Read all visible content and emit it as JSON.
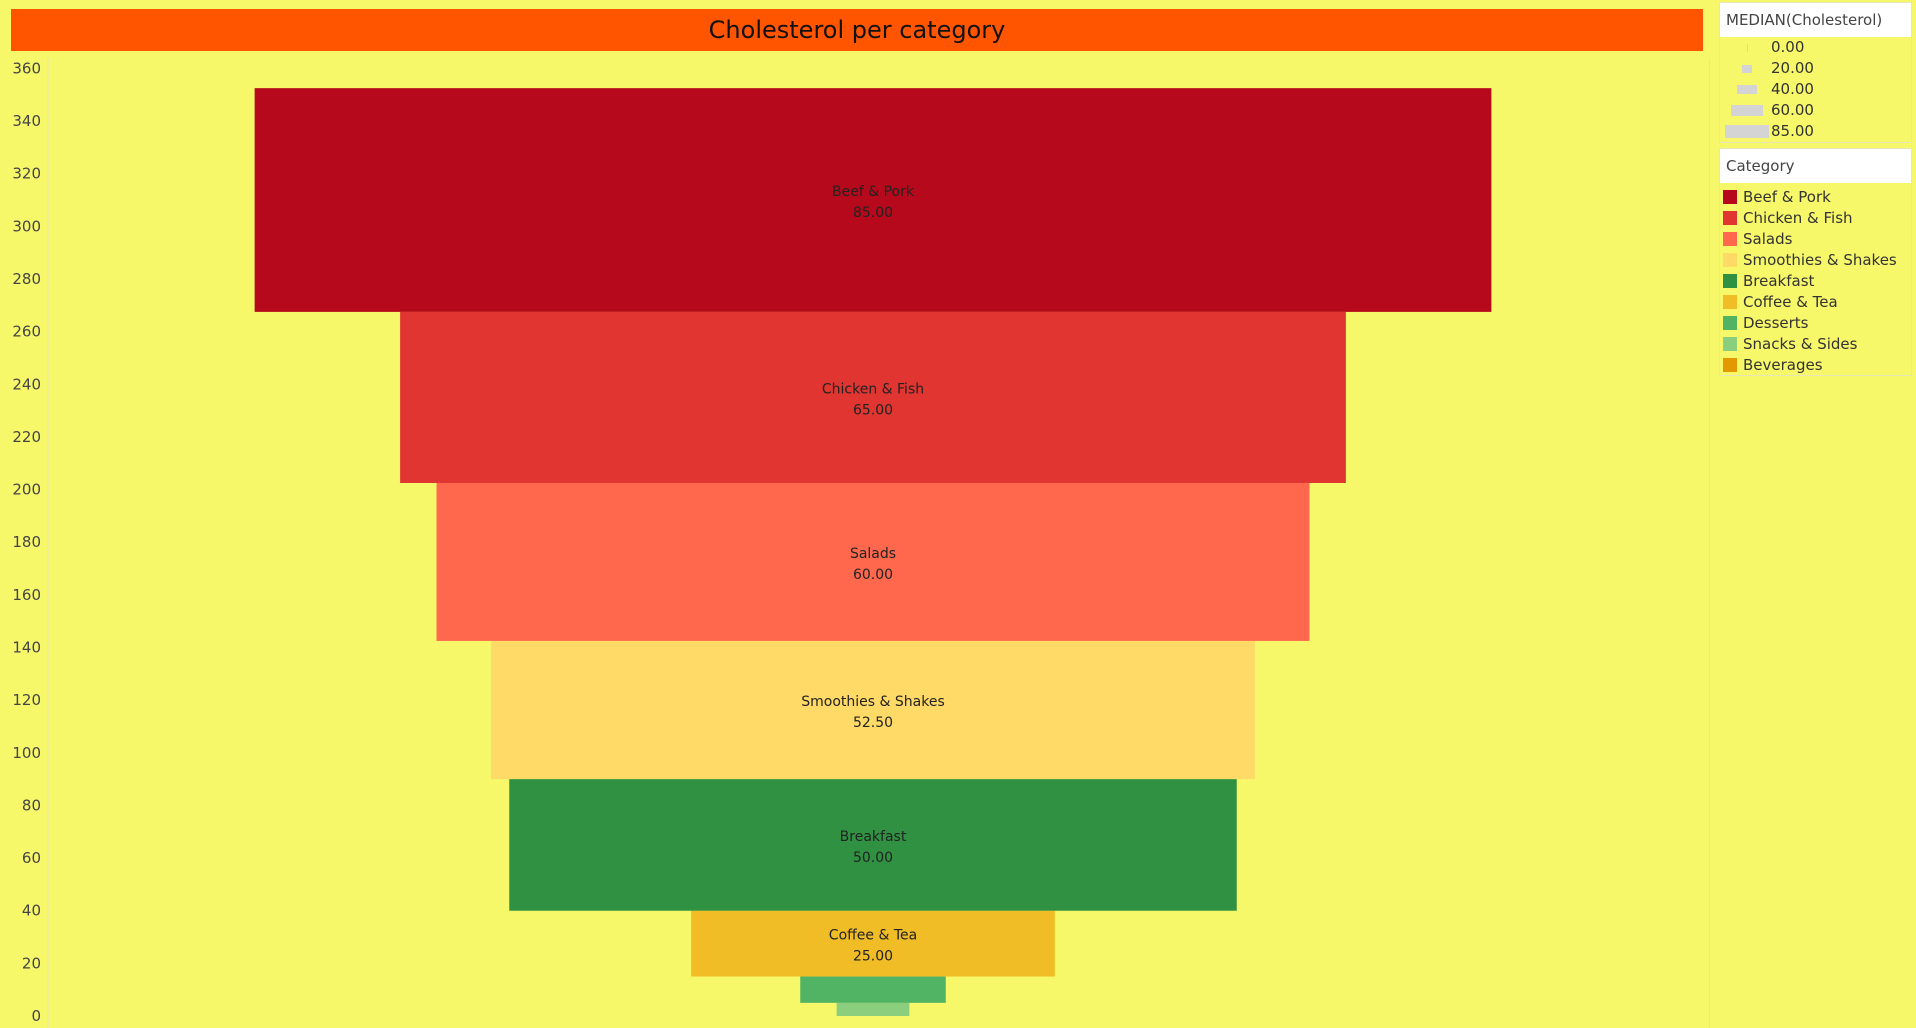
{
  "title": "Cholesterol per category",
  "size_legend": {
    "title": "MEDIAN(Cholesterol)",
    "entries": [
      {
        "label": "0.00",
        "value": 0
      },
      {
        "label": "20.00",
        "value": 20
      },
      {
        "label": "40.00",
        "value": 40
      },
      {
        "label": "60.00",
        "value": 60
      },
      {
        "label": "85.00",
        "value": 85
      }
    ]
  },
  "color_legend": {
    "title": "Category",
    "entries": [
      {
        "label": "Beef & Pork",
        "color": "#B60A1C"
      },
      {
        "label": "Chicken & Fish",
        "color": "#E03531"
      },
      {
        "label": "Salads",
        "color": "#FF684C"
      },
      {
        "label": "Smoothies & Shakes",
        "color": "#FFDA66"
      },
      {
        "label": "Breakfast",
        "color": "#309143"
      },
      {
        "label": "Coffee & Tea",
        "color": "#F0BD27"
      },
      {
        "label": "Desserts",
        "color": "#51B364"
      },
      {
        "label": "Snacks & Sides",
        "color": "#8ACE7E"
      },
      {
        "label": "Beverages",
        "color": "#E39802"
      }
    ]
  },
  "chart_data": {
    "type": "bar",
    "subtype": "funnel (stacked, width = median cholesterol)",
    "title": "Cholesterol per category",
    "ylabel": "",
    "ylim": [
      0,
      365
    ],
    "yticks": [
      0,
      20,
      40,
      60,
      80,
      100,
      120,
      140,
      160,
      180,
      200,
      220,
      240,
      260,
      280,
      300,
      320,
      340,
      360
    ],
    "series": [
      {
        "category": "Beef & Pork",
        "value": 85,
        "label": "85.00",
        "color": "#B60A1C",
        "show_label": true
      },
      {
        "category": "Chicken & Fish",
        "value": 65,
        "label": "65.00",
        "color": "#E03531",
        "show_label": true
      },
      {
        "category": "Salads",
        "value": 60,
        "label": "60.00",
        "color": "#FF684C",
        "show_label": true
      },
      {
        "category": "Smoothies & Shakes",
        "value": 52.5,
        "label": "52.50",
        "color": "#FFDA66",
        "show_label": true
      },
      {
        "category": "Breakfast",
        "value": 50,
        "label": "50.00",
        "color": "#309143",
        "show_label": true
      },
      {
        "category": "Coffee & Tea",
        "value": 25,
        "label": "25.00",
        "color": "#F0BD27",
        "show_label": true
      },
      {
        "category": "Desserts",
        "value": 10,
        "label": "10.00",
        "color": "#51B364",
        "show_label": false
      },
      {
        "category": "Snacks & Sides",
        "value": 5,
        "label": "5.00",
        "color": "#8ACE7E",
        "show_label": false
      },
      {
        "category": "Beverages",
        "value": 0,
        "label": "0.00",
        "color": "#E39802",
        "show_label": false
      }
    ],
    "legend_position": "right"
  }
}
